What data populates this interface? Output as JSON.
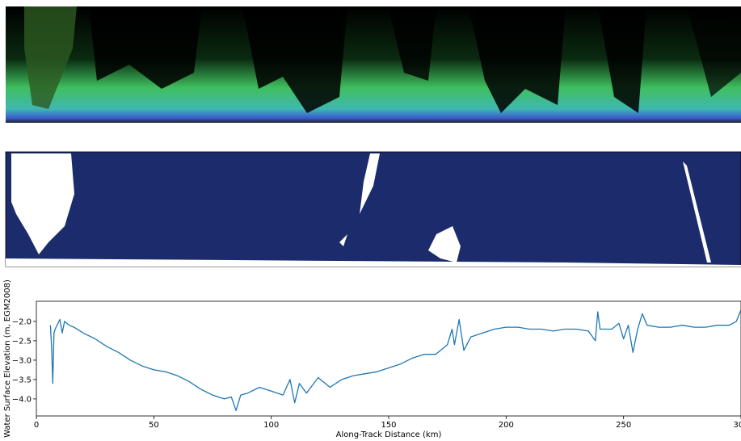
{
  "chart_data": {
    "type": "line",
    "xlabel": "Along-Track Distance (km)",
    "ylabel": "Water Surface Elevation (m, EGM2008)",
    "xlim": [
      0,
      300
    ],
    "xticks": [
      0,
      50,
      100,
      150,
      200,
      250,
      300
    ],
    "ylim": [
      -4.44,
      -1.48
    ],
    "yticks": [
      {
        "value": -4,
        "label": "−4.0"
      },
      {
        "value": -3.5,
        "label": "−3.5"
      },
      {
        "value": -3,
        "label": "−3.0"
      },
      {
        "value": -2.5,
        "label": "−2.5"
      },
      {
        "value": -2,
        "label": "−2.0"
      }
    ],
    "grid": false,
    "series": [
      {
        "color": "#1f77b4",
        "x": [
          6,
          6.5,
          7,
          7.5,
          8,
          10,
          11,
          12,
          14,
          16,
          20,
          25,
          30,
          35,
          40,
          45,
          50,
          55,
          60,
          65,
          70,
          75,
          80,
          83,
          85,
          87,
          90,
          95,
          100,
          105,
          108,
          110,
          112,
          115,
          120,
          125,
          130,
          135,
          140,
          145,
          150,
          155,
          160,
          165,
          170,
          175,
          177,
          178,
          180,
          182,
          185,
          190,
          195,
          200,
          205,
          210,
          215,
          220,
          225,
          230,
          235,
          238,
          239,
          240,
          245,
          248,
          250,
          252,
          254,
          256,
          258,
          260,
          265,
          270,
          275,
          280,
          285,
          290,
          295,
          298,
          300
        ],
        "values": [
          -2.1,
          -2.7,
          -3.6,
          -2.3,
          -2.2,
          -1.95,
          -2.3,
          -2.0,
          -2.1,
          -2.15,
          -2.3,
          -2.45,
          -2.65,
          -2.8,
          -3.0,
          -3.15,
          -3.25,
          -3.3,
          -3.4,
          -3.55,
          -3.75,
          -3.9,
          -4.0,
          -3.95,
          -4.3,
          -3.9,
          -3.85,
          -3.7,
          -3.8,
          -3.9,
          -3.5,
          -4.1,
          -3.6,
          -3.85,
          -3.45,
          -3.7,
          -3.5,
          -3.4,
          -3.35,
          -3.3,
          -3.2,
          -3.1,
          -2.95,
          -2.85,
          -2.85,
          -2.6,
          -2.2,
          -2.6,
          -1.95,
          -2.75,
          -2.4,
          -2.3,
          -2.2,
          -2.15,
          -2.15,
          -2.2,
          -2.2,
          -2.25,
          -2.2,
          -2.2,
          -2.25,
          -2.5,
          -1.75,
          -2.2,
          -2.2,
          -2.05,
          -2.45,
          -2.1,
          -2.8,
          -2.2,
          -1.8,
          -2.1,
          -2.15,
          -2.15,
          -2.1,
          -2.15,
          -2.15,
          -2.1,
          -2.1,
          -2.0,
          -1.7
        ]
      }
    ]
  }
}
